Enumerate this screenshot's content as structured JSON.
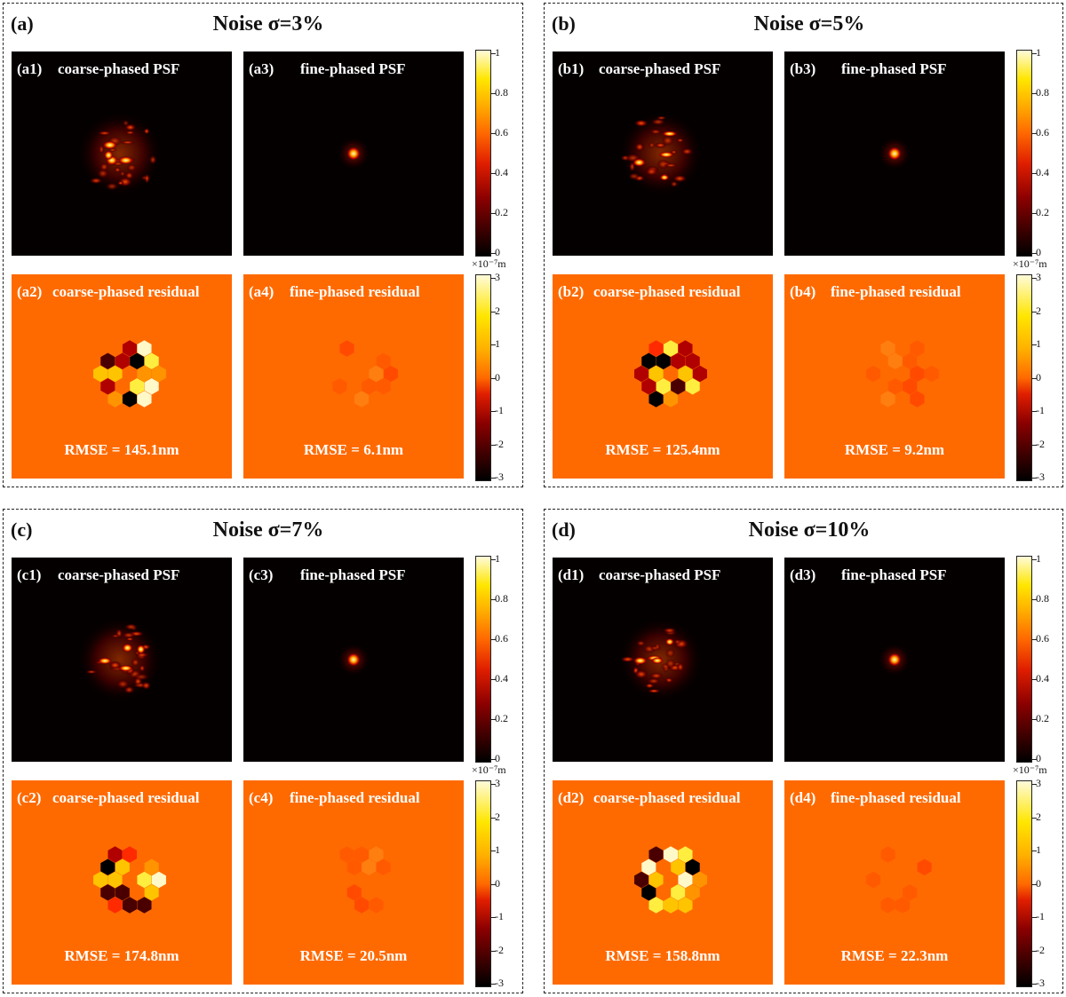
{
  "groups": [
    {
      "label": "(a)",
      "title": "Noise σ=3%",
      "psf_coarse_label": "(a1)",
      "psf_fine_label": "(a3)",
      "res_coarse_label": "(a2)",
      "res_fine_label": "(a4)",
      "rmse_coarse": "RMSE = 145.1nm",
      "rmse_fine": "RMSE = 6.1nm"
    },
    {
      "label": "(b)",
      "title": "Noise σ=5%",
      "psf_coarse_label": "(b1)",
      "psf_fine_label": "(b3)",
      "res_coarse_label": "(b2)",
      "res_fine_label": "(b4)",
      "rmse_coarse": "RMSE = 125.4nm",
      "rmse_fine": "RMSE = 9.2nm"
    },
    {
      "label": "(c)",
      "title": "Noise σ=7%",
      "psf_coarse_label": "(c1)",
      "psf_fine_label": "(c3)",
      "res_coarse_label": "(c2)",
      "res_fine_label": "(c4)",
      "rmse_coarse": "RMSE = 174.8nm",
      "rmse_fine": "RMSE = 20.5nm"
    },
    {
      "label": "(d)",
      "title": "Noise σ=10%",
      "psf_coarse_label": "(d1)",
      "psf_fine_label": "(d3)",
      "res_coarse_label": "(d2)",
      "res_fine_label": "(d4)",
      "rmse_coarse": "RMSE = 158.8nm",
      "rmse_fine": "RMSE = 22.3nm"
    }
  ],
  "panel_titles": {
    "coarse_psf": "coarse-phased PSF",
    "fine_psf": "fine-phased PSF",
    "coarse_residual": "coarse-phased residual",
    "fine_residual": "fine-phased residual"
  },
  "colorbars": {
    "psf_ticks": [
      "1",
      "0.8",
      "0.6",
      "0.4",
      "0.2",
      "0"
    ],
    "residual_ticks": [
      "3",
      "2",
      "1",
      "0",
      "-1",
      "-2",
      "-3"
    ],
    "residual_unit": "×10⁻⁷m"
  },
  "colors": {
    "residual_background": "#ff6a00",
    "psf_background": "#050000",
    "colormap": "hot"
  }
}
